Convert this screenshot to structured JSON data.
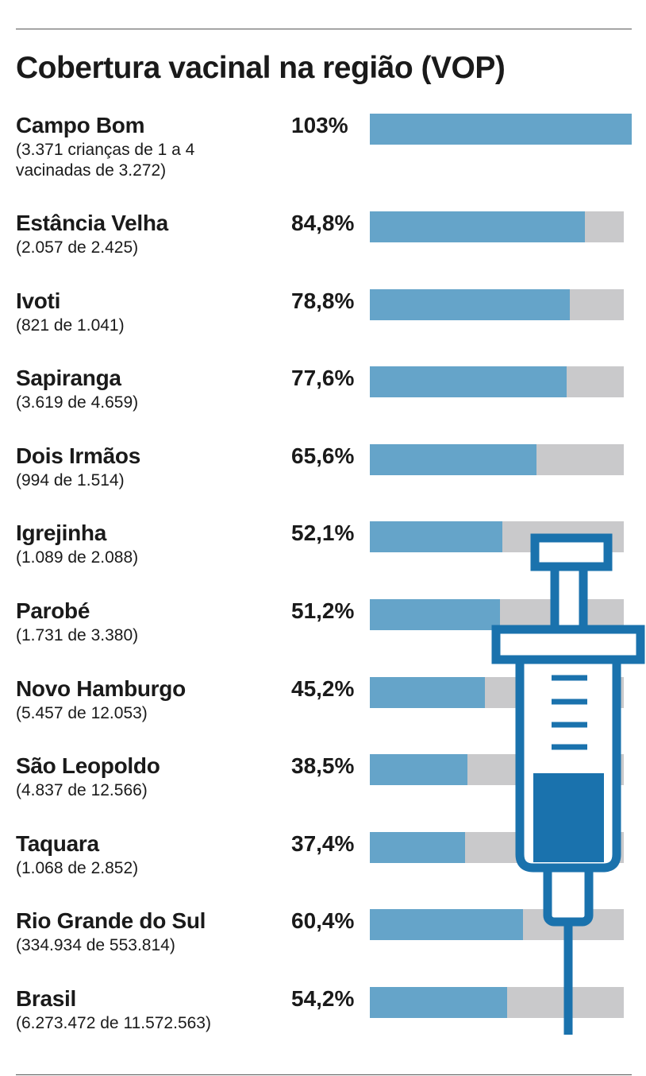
{
  "chart_data": {
    "type": "bar",
    "title": "Cobertura vacinal na região (VOP)",
    "categories": [
      "Campo Bom",
      "Estância Velha",
      "Ivoti",
      "Sapiranga",
      "Dois Irmãos",
      "Igrejinha",
      "Parobé",
      "Novo Hamburgo",
      "São Leopoldo",
      "Taquara",
      "Rio Grande do Sul",
      "Brasil"
    ],
    "sublabels": [
      "(3.371 crianças de 1 a 4 vacinadas de 3.272)",
      "(2.057 de 2.425)",
      "(821 de 1.041)",
      "(3.619 de 4.659)",
      "(994 de 1.514)",
      "(1.089 de 2.088)",
      "(1.731 de 3.380)",
      "(5.457 de 12.053)",
      "(4.837 de 12.566)",
      "(1.068 de 2.852)",
      "(334.934 de 553.814)",
      "(6.273.472 de 11.572.563)"
    ],
    "values": [
      103,
      84.8,
      78.8,
      77.6,
      65.6,
      52.1,
      51.2,
      45.2,
      38.5,
      37.4,
      60.4,
      54.2
    ],
    "value_labels": [
      "103%",
      "84,8%",
      "78,8%",
      "77,6%",
      "65,6%",
      "52,1%",
      "51,2%",
      "45,2%",
      "38,5%",
      "37,4%",
      "60,4%",
      "54,2%"
    ],
    "xlim": [
      0,
      100
    ],
    "color": "#65a4c9",
    "track_color": "#c9c9cb"
  }
}
